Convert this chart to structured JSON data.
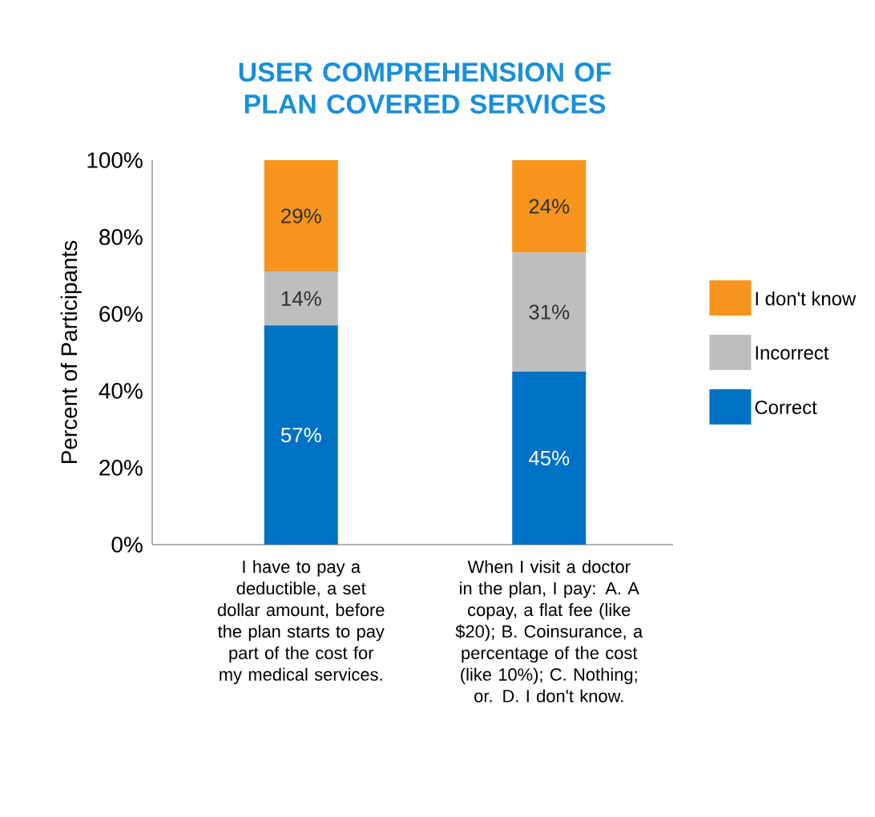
{
  "chart_data": {
    "type": "bar",
    "stacked": true,
    "title": "USER COMPREHENSION OF PLAN COVERED SERVICES",
    "ylabel": "Percent of Participants",
    "categories": [
      "I have to pay a deductible, a set dollar amount, before the plan starts to pay part of the cost for my medical services.",
      "When I visit a doctor in the plan, I pay: A. A copay, a flat fee (like $20); B. Coinsurance, a percentage of the cost (like 10%); C. Nothing; or. D. I don't know."
    ],
    "ylim": [
      0,
      100
    ],
    "yticks": [
      {
        "value": 0,
        "label": "0%"
      },
      {
        "value": 20,
        "label": "20%"
      },
      {
        "value": 40,
        "label": "40%"
      },
      {
        "value": 60,
        "label": "60%"
      },
      {
        "value": 80,
        "label": "80%"
      },
      {
        "value": 100,
        "label": "100%"
      }
    ],
    "legend": "right",
    "series": [
      {
        "name": "Correct",
        "color": "#0072c6",
        "values": [
          57,
          45
        ],
        "value_labels": [
          "57%",
          "45%"
        ]
      },
      {
        "name": "Incorrect",
        "color": "#bcbec0",
        "values": [
          14,
          31
        ],
        "value_labels": [
          "14%",
          "31%"
        ]
      },
      {
        "name": "I don't know",
        "color": "#f7941d",
        "values": [
          29,
          24
        ],
        "value_labels": [
          "29%",
          "24%"
        ]
      }
    ]
  }
}
